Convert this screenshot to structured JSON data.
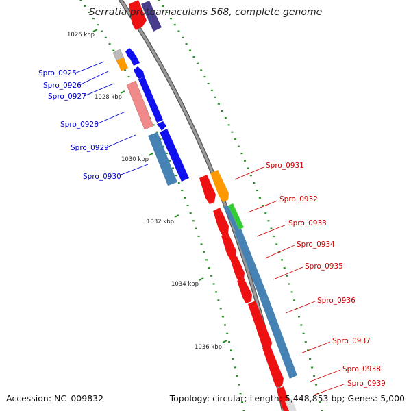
{
  "title": "Serratia proteamaculans 568, complete genome",
  "footer": {
    "accession": "Accession: NC_009832",
    "topology": "Topology: circular; Length: 5,448,853 bp; Genes: 5,000"
  },
  "scale_labels": [
    "1026 kbp",
    "1028 kbp",
    "1030 kbp",
    "1032 kbp",
    "1034 kbp",
    "1036 kbp"
  ],
  "genes_left": [
    {
      "name": "Spro_0925",
      "color": "#0000cc"
    },
    {
      "name": "Spro_0926",
      "color": "#0000cc"
    },
    {
      "name": "Spro_0927",
      "color": "#0000cc"
    },
    {
      "name": "Spro_0928",
      "color": "#0000cc"
    },
    {
      "name": "Spro_0929",
      "color": "#0000cc"
    },
    {
      "name": "Spro_0930",
      "color": "#0000cc"
    }
  ],
  "genes_right": [
    {
      "name": "Spro_0931",
      "color": "#cc0000"
    },
    {
      "name": "Spro_0932",
      "color": "#cc0000"
    },
    {
      "name": "Spro_0933",
      "color": "#cc0000"
    },
    {
      "name": "Spro_0934",
      "color": "#cc0000"
    },
    {
      "name": "Spro_0935",
      "color": "#cc0000"
    },
    {
      "name": "Spro_0936",
      "color": "#cc0000"
    },
    {
      "name": "Spro_0937",
      "color": "#cc0000"
    },
    {
      "name": "Spro_0938",
      "color": "#cc0000"
    },
    {
      "name": "Spro_0939",
      "color": "#cc0000"
    }
  ],
  "colors": {
    "forward": "#ee1111",
    "reverse": "#1010ee",
    "steelblue": "#4682b4",
    "orange": "#ff9900",
    "pink": "#f08a8a",
    "green": "#33cc33",
    "navy": "#483d8b",
    "grey": "#bbbbbb",
    "backbone": "#888888",
    "tick": "#228b22"
  }
}
